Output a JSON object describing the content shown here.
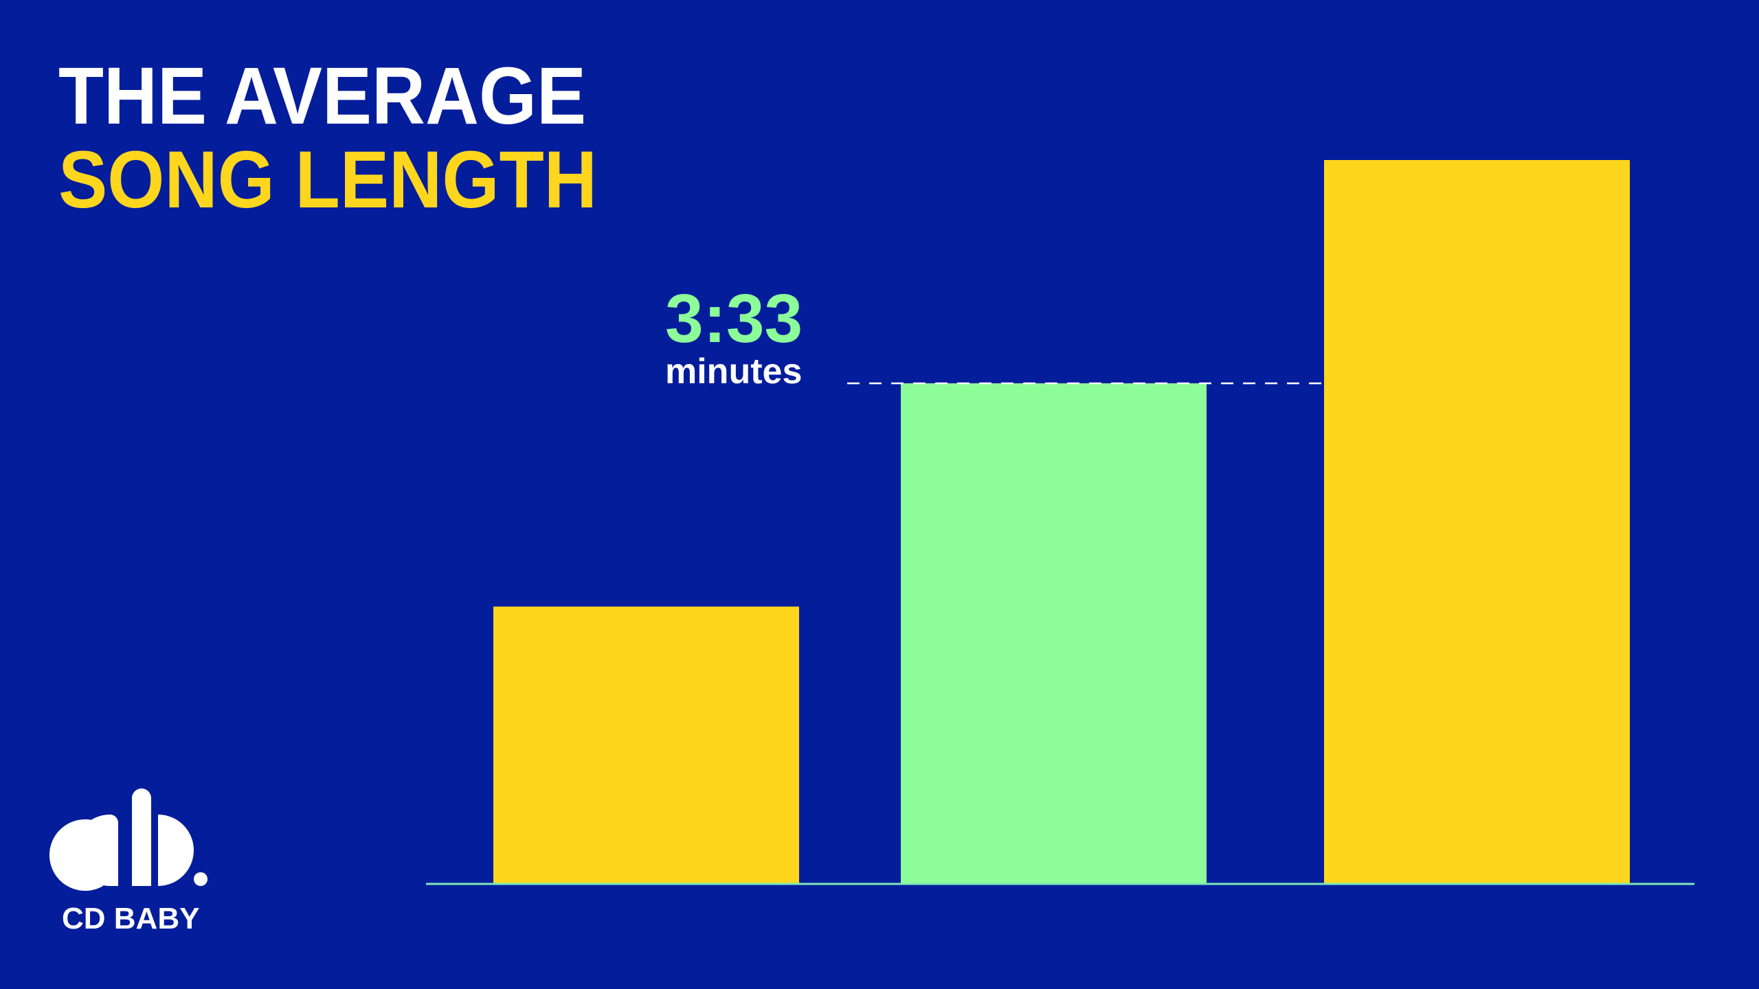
{
  "chart_data": {
    "type": "bar",
    "title_line1": "THE AVERAGE",
    "title_line2": "SONG LENGTH",
    "categories": [
      null,
      null,
      null
    ],
    "values": [
      118,
      213,
      308
    ],
    "value_labels": [
      null,
      "3:33",
      null
    ],
    "unit_label": "minutes",
    "colors": [
      "#fed61e",
      "#8cfd98",
      "#fed61e"
    ],
    "brand": "CD BABY"
  }
}
